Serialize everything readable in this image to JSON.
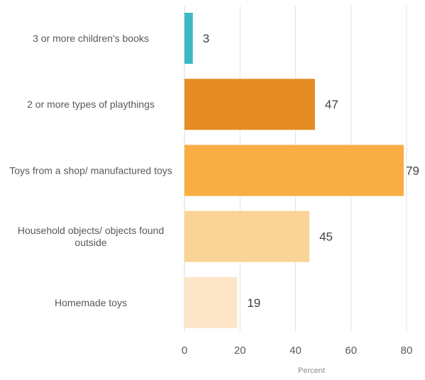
{
  "chart_data": {
    "type": "bar",
    "orientation": "horizontal",
    "categories": [
      "3 or more children's books",
      "2  or more types of playthings",
      "Toys from a shop/ manufactured toys",
      "Household objects/ objects found outside",
      "Homemade toys"
    ],
    "values": [
      3,
      47,
      79,
      45,
      19
    ],
    "colors": [
      "#3bb9c4",
      "#e58c23",
      "#f9ae43",
      "#fad396",
      "#fde6c8"
    ],
    "xlabel": "Percent",
    "ylabel": "",
    "title": "",
    "xlim": [
      0,
      80
    ],
    "xticks": [
      0,
      20,
      40,
      60,
      80
    ],
    "grid": "vertical",
    "legend": "none"
  }
}
